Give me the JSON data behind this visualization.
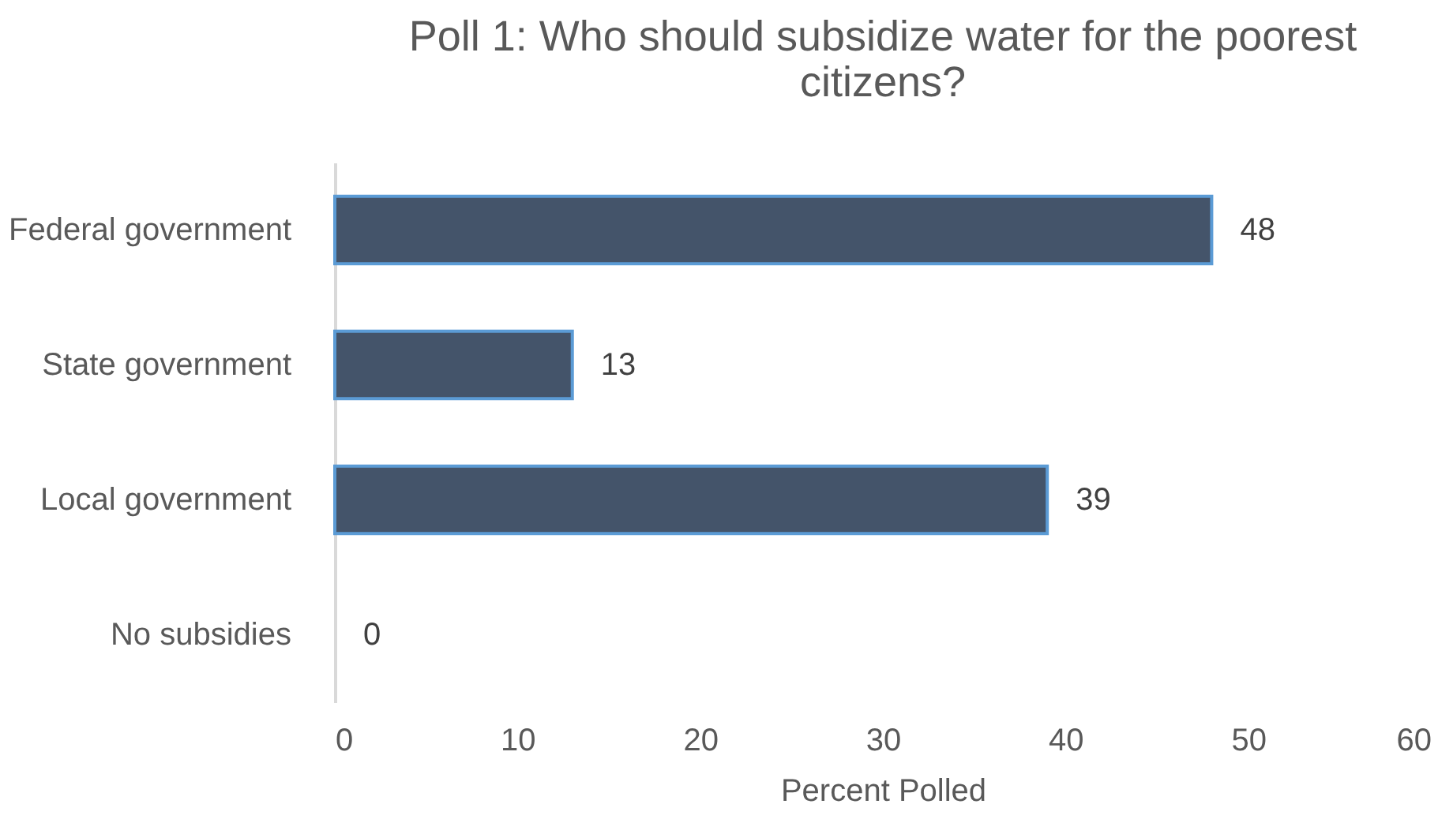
{
  "chart_data": {
    "type": "bar",
    "orientation": "horizontal",
    "title": "Poll 1: Who should subsidize water for the poorest citizens?",
    "xlabel": "Percent Polled",
    "categories": [
      "Federal government",
      "State government",
      "Local government",
      "No subsidies"
    ],
    "values": [
      48,
      13,
      39,
      0
    ],
    "color": "#44546a",
    "xlim": [
      0,
      60
    ],
    "xticks": [
      0,
      10,
      20,
      30,
      40,
      50,
      60
    ],
    "grid": false,
    "data_labels": true
  }
}
